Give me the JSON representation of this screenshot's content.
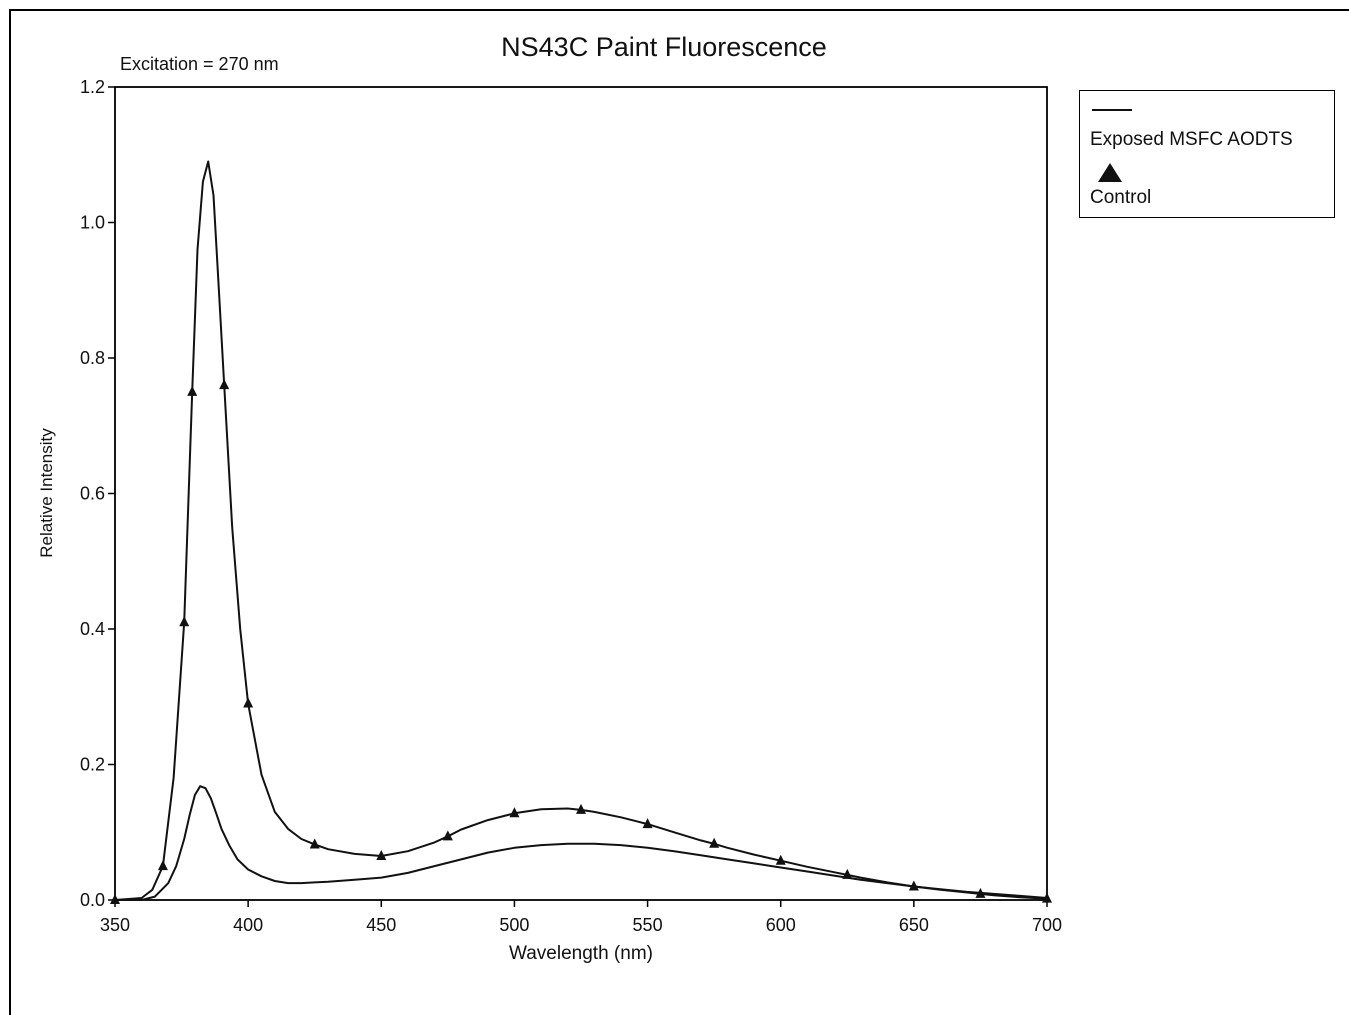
{
  "chart_data": {
    "type": "line",
    "title": "NS43C Paint Fluorescence",
    "annotation": "Excitation = 270 nm",
    "xlabel": "Wavelength (nm)",
    "ylabel": "Relative Intensity",
    "xlim": [
      350,
      700
    ],
    "ylim": [
      0,
      1.2
    ],
    "x_ticks": [
      "350",
      "400",
      "450",
      "500",
      "550",
      "600",
      "650",
      "700"
    ],
    "y_ticks": [
      "0.0",
      "0.2",
      "0.4",
      "0.6",
      "0.8",
      "1.0",
      "1.2"
    ],
    "grid": false,
    "legend_position": "outside-right-top",
    "series": [
      {
        "name": "Exposed MSFC AODTS",
        "marker": "none",
        "x": [
          350,
          360,
          365,
          370,
          373,
          376,
          378,
          380,
          382,
          384,
          386,
          388,
          390,
          393,
          396,
          400,
          405,
          410,
          415,
          420,
          425,
          430,
          440,
          450,
          460,
          470,
          480,
          490,
          500,
          510,
          520,
          530,
          540,
          550,
          560,
          570,
          580,
          590,
          600,
          610,
          620,
          630,
          640,
          650,
          660,
          670,
          680,
          690,
          700
        ],
        "y": [
          0.0,
          0.0,
          0.005,
          0.025,
          0.05,
          0.09,
          0.125,
          0.155,
          0.168,
          0.165,
          0.15,
          0.128,
          0.105,
          0.08,
          0.06,
          0.045,
          0.035,
          0.028,
          0.025,
          0.025,
          0.026,
          0.027,
          0.03,
          0.033,
          0.04,
          0.05,
          0.06,
          0.07,
          0.077,
          0.081,
          0.083,
          0.083,
          0.081,
          0.077,
          0.072,
          0.066,
          0.06,
          0.054,
          0.048,
          0.042,
          0.036,
          0.03,
          0.025,
          0.02,
          0.016,
          0.012,
          0.009,
          0.006,
          0.003
        ]
      },
      {
        "name": "Control",
        "marker": "triangle",
        "x": [
          350,
          360,
          364,
          368,
          372,
          376,
          379,
          381,
          383,
          385,
          387,
          389,
          391,
          394,
          397,
          400,
          405,
          410,
          415,
          420,
          425,
          430,
          440,
          450,
          460,
          470,
          475,
          480,
          490,
          500,
          510,
          520,
          525,
          530,
          540,
          550,
          560,
          570,
          575,
          580,
          590,
          600,
          610,
          620,
          625,
          630,
          640,
          650,
          660,
          670,
          675,
          680,
          690,
          700
        ],
        "y": [
          0.0,
          0.003,
          0.015,
          0.05,
          0.18,
          0.41,
          0.75,
          0.96,
          1.06,
          1.09,
          1.04,
          0.9,
          0.76,
          0.55,
          0.4,
          0.29,
          0.185,
          0.13,
          0.105,
          0.09,
          0.082,
          0.075,
          0.068,
          0.065,
          0.072,
          0.085,
          0.094,
          0.104,
          0.118,
          0.128,
          0.134,
          0.135,
          0.133,
          0.13,
          0.122,
          0.112,
          0.1,
          0.088,
          0.083,
          0.077,
          0.067,
          0.058,
          0.049,
          0.041,
          0.037,
          0.033,
          0.026,
          0.02,
          0.015,
          0.011,
          0.009,
          0.007,
          0.004,
          0.002
        ]
      }
    ],
    "control_markers": {
      "x": [
        350,
        368,
        376,
        379,
        391,
        400,
        425,
        450,
        475,
        500,
        525,
        550,
        575,
        600,
        625,
        650,
        675,
        700
      ],
      "y": [
        0.0,
        0.05,
        0.41,
        0.75,
        0.76,
        0.29,
        0.082,
        0.065,
        0.094,
        0.128,
        0.133,
        0.112,
        0.083,
        0.058,
        0.037,
        0.02,
        0.009,
        0.002
      ]
    }
  },
  "legend": {
    "items": [
      {
        "label": "Exposed MSFC AODTS",
        "symbol": "line"
      },
      {
        "label": "Control",
        "symbol": "triangle"
      }
    ]
  },
  "colors": {
    "line": "#111111",
    "axis": "#000000",
    "background": "#ffffff"
  }
}
